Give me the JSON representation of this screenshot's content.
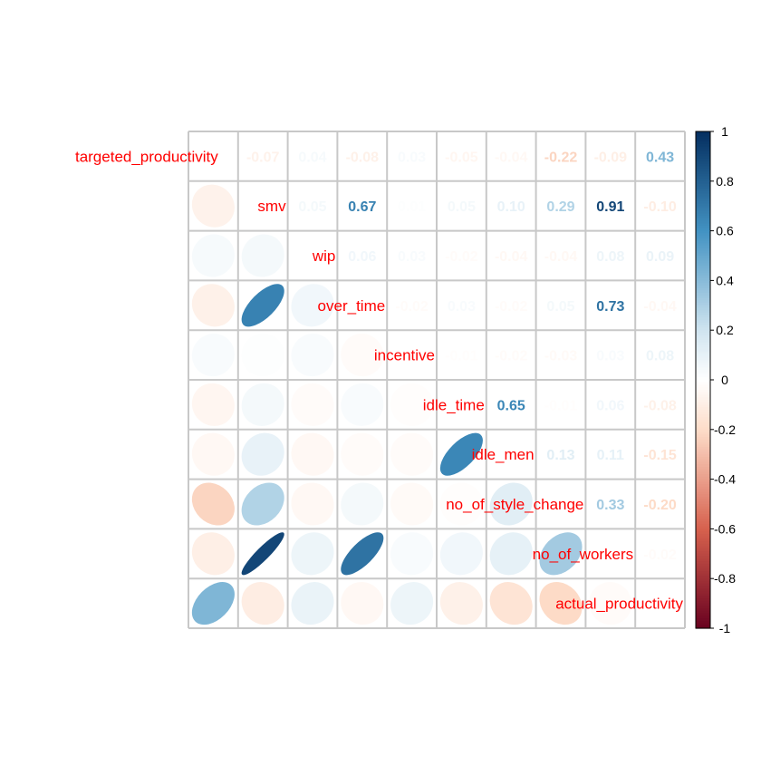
{
  "chart_data": {
    "type": "heatmap",
    "title": "",
    "variables": [
      "targeted_productivity",
      "smv",
      "wip",
      "over_time",
      "incentive",
      "idle_time",
      "idle_men",
      "no_of_style_change",
      "no_of_workers",
      "actual_productivity"
    ],
    "labels_visible": [
      "targeted_productivity",
      "smv",
      "wip",
      "ver_time",
      "centive",
      "le_time",
      "le_men",
      "style_change",
      "of_workers",
      "_productivity"
    ],
    "matrix": [
      [
        1,
        -0.07,
        0.04,
        -0.08,
        0.03,
        -0.05,
        -0.04,
        -0.22,
        -0.09,
        0.43
      ],
      [
        -0.07,
        1,
        0.05,
        0.67,
        0.01,
        0.05,
        0.1,
        0.29,
        0.91,
        -0.1
      ],
      [
        0.04,
        0.05,
        1,
        0.06,
        0.03,
        -0.02,
        -0.04,
        -0.04,
        0.08,
        0.09
      ],
      [
        -0.08,
        0.67,
        0.06,
        1,
        -0.02,
        0.03,
        -0.02,
        0.05,
        0.73,
        -0.04
      ],
      [
        0.03,
        0.01,
        0.03,
        -0.02,
        1,
        -0.01,
        -0.02,
        -0.03,
        0.03,
        0.08
      ],
      [
        -0.05,
        0.05,
        -0.02,
        0.03,
        -0.01,
        1,
        0.65,
        -0.01,
        0.06,
        -0.08
      ],
      [
        -0.04,
        0.1,
        -0.04,
        -0.02,
        -0.02,
        0.65,
        1,
        0.13,
        0.11,
        -0.15
      ],
      [
        -0.22,
        0.29,
        -0.04,
        0.05,
        -0.03,
        -0.01,
        0.13,
        1,
        0.33,
        -0.2
      ],
      [
        -0.09,
        0.91,
        0.08,
        0.73,
        0.03,
        0.06,
        0.11,
        0.33,
        1,
        -0.02
      ],
      [
        0.43,
        -0.1,
        0.09,
        -0.04,
        0.08,
        -0.08,
        -0.15,
        -0.2,
        -0.02,
        1
      ]
    ],
    "upper": "number",
    "lower": "ellipse",
    "colorbar": {
      "ticks": [
        "1",
        "0.8",
        "0.6",
        "0.4",
        "0.2",
        "0",
        "-0.2",
        "-0.4",
        "-0.6",
        "-0.8",
        "-1"
      ],
      "range": [
        -1,
        1
      ]
    },
    "label_color": "#ff0000"
  }
}
